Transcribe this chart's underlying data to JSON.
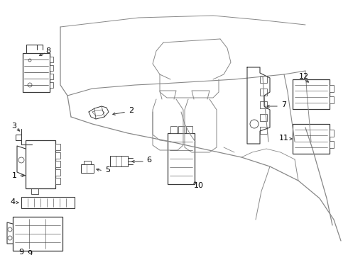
{
  "background_color": "#ffffff",
  "line_color": "#3a3a3a",
  "label_color": "#000000",
  "fig_width": 4.9,
  "fig_height": 3.6,
  "dpi": 100
}
